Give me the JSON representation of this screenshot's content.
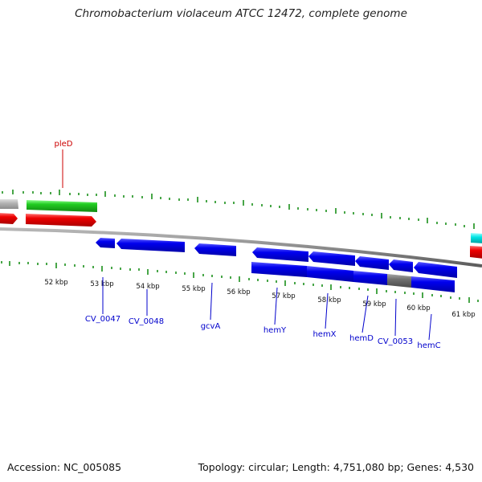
{
  "title": "Chromobacterium violaceum ATCC 12472, complete genome",
  "footer": {
    "accession": "Accession: NC_005085",
    "summary": "Topology: circular; Length: 4,751,080 bp; Genes: 4,530"
  },
  "ticks": [
    "52 kbp",
    "53 kbp",
    "54 kbp",
    "55 kbp",
    "56 kbp",
    "57 kbp",
    "58 kbp",
    "59 kbp",
    "60 kbp",
    "61 kbp"
  ],
  "gene_labels": [
    {
      "id": "pleD",
      "label": "pleD",
      "strand": "forward"
    },
    {
      "id": "cv0047",
      "label": "CV_0047",
      "strand": "reverse"
    },
    {
      "id": "cv0048",
      "label": "CV_0048",
      "strand": "reverse"
    },
    {
      "id": "gcva",
      "label": "gcvA",
      "strand": "reverse"
    },
    {
      "id": "hemy",
      "label": "hemY",
      "strand": "reverse"
    },
    {
      "id": "hemx",
      "label": "hemX",
      "strand": "reverse"
    },
    {
      "id": "hemd",
      "label": "hemD",
      "strand": "reverse"
    },
    {
      "id": "cv0053",
      "label": "CV_0053",
      "strand": "reverse"
    },
    {
      "id": "hemc",
      "label": "hemC",
      "strand": "reverse"
    }
  ],
  "colors": {
    "forward_label": "#cc0000",
    "reverse_label": "#0000cc",
    "tick": "#1a8f1a",
    "backbone": "#8c8c8c",
    "cds_blue": "#0000ee",
    "cds_red": "#ee0000",
    "cds_green": "#22cc22",
    "cds_gray": "#707070",
    "cds_light_gray": "#b4b4b4",
    "cds_cyan": "#00e5e5"
  }
}
